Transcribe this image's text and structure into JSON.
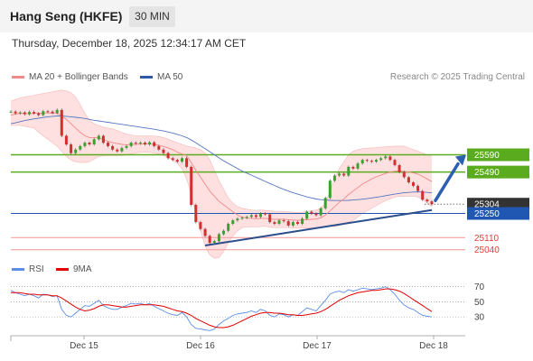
{
  "header": {
    "title": "Hang Seng (HKFE)",
    "timeframe": "30 MIN"
  },
  "timestamp": "Thursday, December 18, 2025 12:34:17 AM CET",
  "legend": {
    "ma20": "MA 20 + Bollinger Bands",
    "ma50": "MA 50",
    "copyright": "Research © 2025 Trading Central"
  },
  "rsi_legend": {
    "rsi": "RSI",
    "ma9": "9MA"
  },
  "colors": {
    "resistance": "#5aab1e",
    "support": "#e53935",
    "pivot": "#1f57b2",
    "current": "#333333",
    "bollinger": "#ffd6d6",
    "ma20": "#f08a8a",
    "ma50": "#5576c0",
    "rsi": "#5b8ee6",
    "ma9": "#e30000"
  },
  "chart_data": [
    {
      "type": "candlestick",
      "title": "Hang Seng (HKFE)",
      "x_ticks": [
        "Dec 15",
        "Dec 16",
        "Dec 17",
        "Dec 18"
      ],
      "levels": [
        {
          "value": 25590,
          "label": "25590",
          "kind": "resistance"
        },
        {
          "value": 25490,
          "label": "25490",
          "kind": "resistance"
        },
        {
          "value": 25304,
          "label": "25304",
          "kind": "current"
        },
        {
          "value": 25250,
          "label": "25250",
          "kind": "pivot"
        },
        {
          "value": 25110,
          "label": "25110",
          "kind": "support"
        },
        {
          "value": 25040,
          "label": "25040",
          "kind": "support"
        }
      ],
      "ylim": [
        24960,
        25990
      ],
      "close": [
        25840,
        25830,
        25835,
        25825,
        25838,
        25830,
        25820,
        25842,
        25840,
        25832,
        25850,
        25700,
        25650,
        25600,
        25620,
        25640,
        25660,
        25650,
        25680,
        25700,
        25660,
        25640,
        25620,
        25610,
        25630,
        25640,
        25660,
        25655,
        25660,
        25650,
        25662,
        25640,
        25620,
        25600,
        25570,
        25560,
        25550,
        25570,
        25520,
        25300,
        25200,
        25160,
        25120,
        25080,
        25090,
        25130,
        25150,
        25190,
        25210,
        25220,
        25225,
        25230,
        25240,
        25230,
        25250,
        25245,
        25200,
        25190,
        25210,
        25205,
        25180,
        25200,
        25190,
        25220,
        25260,
        25250,
        25240,
        25280,
        25340,
        25440,
        25470,
        25480,
        25470,
        25520,
        25510,
        25540,
        25560,
        25555,
        25550,
        25560,
        25570,
        25580,
        25560,
        25530,
        25490,
        25460,
        25430,
        25410,
        25380,
        25330,
        25320,
        25304
      ],
      "ma20": [
        25820,
        25825,
        25830,
        25828,
        25828,
        25830,
        25830,
        25832,
        25832,
        25830,
        25832,
        25815,
        25795,
        25770,
        25745,
        25720,
        25700,
        25690,
        25690,
        25688,
        25680,
        25668,
        25660,
        25655,
        25650,
        25648,
        25650,
        25650,
        25652,
        25652,
        25652,
        25650,
        25645,
        25638,
        25630,
        25620,
        25605,
        25595,
        25585,
        25545,
        25500,
        25460,
        25420,
        25380,
        25350,
        25320,
        25300,
        25280,
        25260,
        25240,
        25228,
        25224,
        25222,
        25220,
        25222,
        25222,
        25218,
        25216,
        25216,
        25216,
        25214,
        25212,
        25210,
        25212,
        25214,
        25216,
        25218,
        25225,
        25240,
        25265,
        25290,
        25315,
        25335,
        25360,
        25380,
        25400,
        25420,
        25435,
        25450,
        25462,
        25472,
        25482,
        25490,
        25495,
        25496,
        25494,
        25490,
        25485,
        25478,
        25465,
        25450,
        25435
      ],
      "bb_upper": [
        25900,
        25910,
        25920,
        25925,
        25930,
        25935,
        25940,
        25945,
        25950,
        25955,
        25960,
        25965,
        25960,
        25950,
        25925,
        25880,
        25830,
        25790,
        25770,
        25760,
        25750,
        25745,
        25740,
        25730,
        25720,
        25710,
        25705,
        25700,
        25700,
        25700,
        25700,
        25700,
        25695,
        25690,
        25680,
        25670,
        25660,
        25650,
        25640,
        25635,
        25630,
        25620,
        25600,
        25560,
        25500,
        25440,
        25390,
        25340,
        25310,
        25290,
        25280,
        25275,
        25270,
        25268,
        25270,
        25268,
        25265,
        25262,
        25262,
        25262,
        25260,
        25258,
        25256,
        25258,
        25262,
        25266,
        25270,
        25280,
        25310,
        25380,
        25450,
        25510,
        25550,
        25590,
        25610,
        25620,
        25625,
        25628,
        25630,
        25632,
        25634,
        25636,
        25638,
        25640,
        25640,
        25640,
        25630,
        25620,
        25610,
        25600,
        25590,
        25580
      ],
      "bb_lower": [
        25760,
        25760,
        25760,
        25755,
        25750,
        25745,
        25720,
        25700,
        25680,
        25660,
        25640,
        25610,
        25580,
        25560,
        25550,
        25545,
        25545,
        25550,
        25565,
        25580,
        25585,
        25585,
        25585,
        25585,
        25585,
        25590,
        25595,
        25600,
        25604,
        25604,
        25604,
        25600,
        25595,
        25585,
        25575,
        25560,
        25540,
        25510,
        25450,
        25360,
        25250,
        25150,
        25060,
        25010,
        24990,
        24995,
        25030,
        25080,
        25120,
        25150,
        25168,
        25172,
        25174,
        25172,
        25174,
        25176,
        25170,
        25168,
        25168,
        25168,
        25168,
        25166,
        25164,
        25166,
        25166,
        25166,
        25166,
        25170,
        25175,
        25175,
        25175,
        25180,
        25190,
        25200,
        25210,
        25230,
        25250,
        25265,
        25280,
        25295,
        25310,
        25325,
        25335,
        25345,
        25350,
        25348,
        25350,
        25350,
        25346,
        25330,
        25310,
        25290
      ],
      "ma50": [
        25770,
        25775,
        25782,
        25788,
        25793,
        25798,
        25802,
        25806,
        25810,
        25813,
        25815,
        25815,
        25813,
        25810,
        25807,
        25804,
        25800,
        25795,
        25790,
        25786,
        25782,
        25778,
        25774,
        25770,
        25766,
        25762,
        25758,
        25754,
        25750,
        25746,
        25742,
        25738,
        25733,
        25728,
        25722,
        25716,
        25708,
        25700,
        25690,
        25675,
        25660,
        25642,
        25625,
        25608,
        25590,
        25572,
        25555,
        25540,
        25525,
        25510,
        25496,
        25484,
        25472,
        25460,
        25448,
        25436,
        25424,
        25412,
        25400,
        25390,
        25380,
        25370,
        25362,
        25354,
        25346,
        25340,
        25334,
        25330,
        25328,
        25326,
        25325,
        25325,
        25325,
        25326,
        25328,
        25330,
        25333,
        25336,
        25340,
        25344,
        25348,
        25353,
        25358,
        25362,
        25366,
        25370,
        25372,
        25374,
        25375,
        25374,
        25372,
        25370
      ]
    },
    {
      "type": "line",
      "title": "RSI",
      "x_ticks": [
        "Dec 15",
        "Dec 16",
        "Dec 17",
        "Dec 18"
      ],
      "ylim": [
        10,
        85
      ],
      "y_ticks": [
        70,
        50,
        30
      ],
      "series": [
        {
          "name": "RSI",
          "values": [
            65,
            62,
            60,
            58,
            60,
            58,
            55,
            60,
            59,
            57,
            58,
            40,
            32,
            30,
            35,
            40,
            45,
            44,
            48,
            52,
            45,
            42,
            40,
            40,
            43,
            45,
            48,
            47,
            48,
            46,
            48,
            44,
            41,
            38,
            35,
            33,
            32,
            36,
            30,
            20,
            15,
            14,
            13,
            12,
            14,
            20,
            25,
            28,
            32,
            34,
            35,
            36,
            38,
            36,
            40,
            38,
            32,
            30,
            34,
            33,
            30,
            33,
            32,
            37,
            42,
            40,
            38,
            45,
            52,
            60,
            63,
            64,
            62,
            66,
            64,
            66,
            68,
            67,
            66,
            67,
            68,
            70,
            66,
            60,
            52,
            46,
            42,
            40,
            36,
            32,
            31,
            30
          ]
        },
        {
          "name": "9MA",
          "values": [
            62,
            62,
            62,
            61,
            60,
            60,
            59,
            59,
            59,
            58,
            58,
            55,
            51,
            47,
            43,
            40,
            38,
            39,
            41,
            44,
            46,
            46,
            45,
            44,
            43,
            43,
            44,
            45,
            46,
            46,
            46,
            46,
            45,
            44,
            42,
            40,
            38,
            37,
            35,
            32,
            28,
            25,
            22,
            19,
            17,
            16,
            16,
            17,
            19,
            22,
            25,
            28,
            31,
            33,
            35,
            36,
            36,
            35,
            35,
            34,
            33,
            33,
            32,
            32,
            33,
            34,
            35,
            37,
            40,
            44,
            48,
            52,
            55,
            58,
            60,
            62,
            63,
            64,
            65,
            65,
            66,
            67,
            67,
            66,
            64,
            61,
            57,
            53,
            49,
            45,
            41,
            37
          ]
        }
      ]
    }
  ]
}
